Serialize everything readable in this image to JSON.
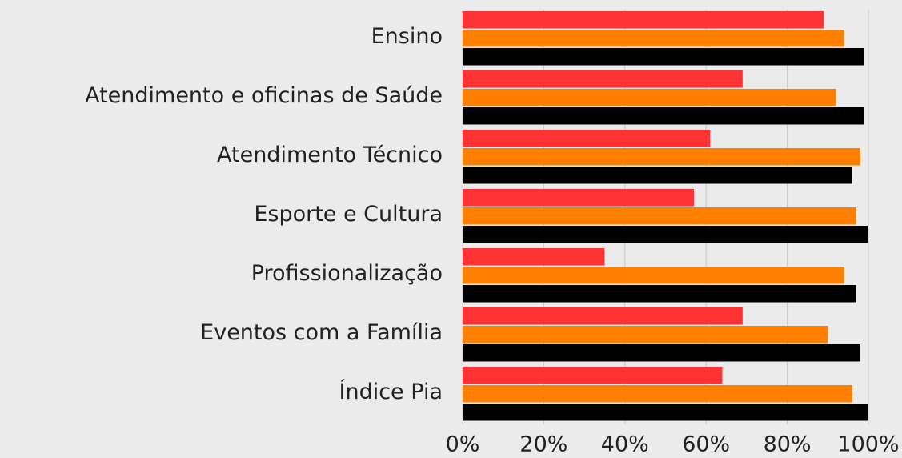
{
  "chart_data": {
    "type": "bar",
    "orientation": "horizontal",
    "categories": [
      "Ensino",
      "Atendimento e oficinas de Saúde",
      "Atendimento Técnico",
      "Esporte e Cultura",
      "Profissionalização",
      "Eventos com a Família",
      "Índice Pia"
    ],
    "series": [
      {
        "color": "#ff3333",
        "values": [
          89,
          69,
          61,
          57,
          35,
          69,
          64
        ]
      },
      {
        "color": "#ff8000",
        "values": [
          94,
          92,
          98,
          97,
          94,
          90,
          96
        ]
      },
      {
        "color": "#000000",
        "values": [
          99,
          99,
          96,
          100,
          97,
          98,
          100
        ]
      }
    ],
    "xlim": [
      0,
      100
    ],
    "xticks": [
      {
        "value": 0,
        "label": "0%"
      },
      {
        "value": 20,
        "label": "20%"
      },
      {
        "value": 40,
        "label": "40%"
      },
      {
        "value": 60,
        "label": "60%"
      },
      {
        "value": 80,
        "label": "80%"
      },
      {
        "value": 100,
        "label": "100%"
      }
    ],
    "grid": true
  }
}
